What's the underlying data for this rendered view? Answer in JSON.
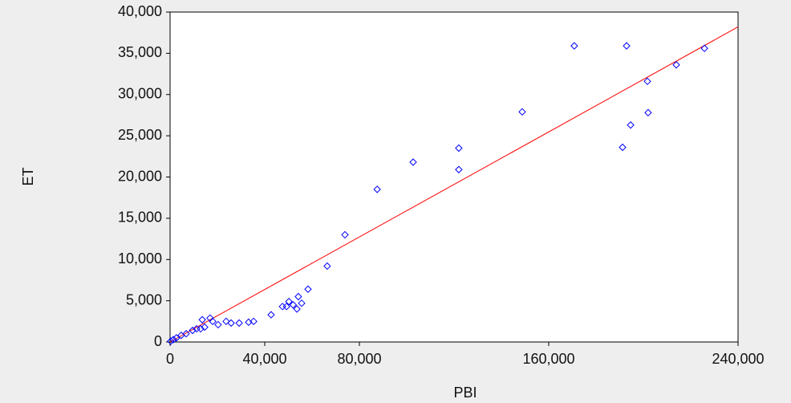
{
  "chart_data": {
    "type": "scatter",
    "xlabel": "PBI",
    "ylabel": "ET",
    "x": [
      170800,
      192900,
      225800,
      213900,
      201700,
      202000,
      194600,
      191200,
      148800,
      122000,
      122000,
      102700,
      87500,
      73900,
      66400,
      58300,
      55600,
      54200,
      53600,
      52000,
      50200,
      49200,
      47500,
      42700,
      35300,
      33200,
      29200,
      25800,
      23700,
      20300,
      16900,
      13600,
      14600,
      11200,
      9500,
      6800,
      4700,
      2700,
      1400,
      300,
      12900,
      18000
    ],
    "values": [
      35900,
      35900,
      35600,
      33600,
      31600,
      27800,
      26300,
      23600,
      27900,
      23500,
      20900,
      21800,
      18500,
      13000,
      9200,
      6400,
      4700,
      5500,
      4000,
      4500,
      4900,
      4300,
      4300,
      3300,
      2500,
      2400,
      2300,
      2300,
      2500,
      2100,
      2900,
      2700,
      1800,
      1600,
      1400,
      1000,
      800,
      500,
      300,
      100,
      1600,
      2500
    ],
    "color": "#0000ff",
    "fit": {
      "x": [
        0,
        240000
      ],
      "values": [
        0,
        38200
      ],
      "color": "#ff0000"
    },
    "xlim": [
      0,
      240000
    ],
    "xticks": [
      0,
      {
        "value": 40000,
        "label": "40,000"
      },
      {
        "value": 80000,
        "label": "80,000"
      },
      {
        "value": 160000,
        "label": "160,000"
      },
      {
        "value": 240000,
        "label": "240,000"
      }
    ],
    "ylim": [
      0,
      40000
    ],
    "yticks": [
      0,
      {
        "value": 5000,
        "label": "5,000"
      },
      {
        "value": 10000,
        "label": "10,000"
      },
      {
        "value": 15000,
        "label": "15,000"
      },
      {
        "value": 20000,
        "label": "20,000"
      },
      {
        "value": 25000,
        "label": "25,000"
      },
      {
        "value": 30000,
        "label": "30,000"
      },
      {
        "value": 35000,
        "label": "35,000"
      },
      {
        "value": 40000,
        "label": "40,000"
      }
    ]
  }
}
